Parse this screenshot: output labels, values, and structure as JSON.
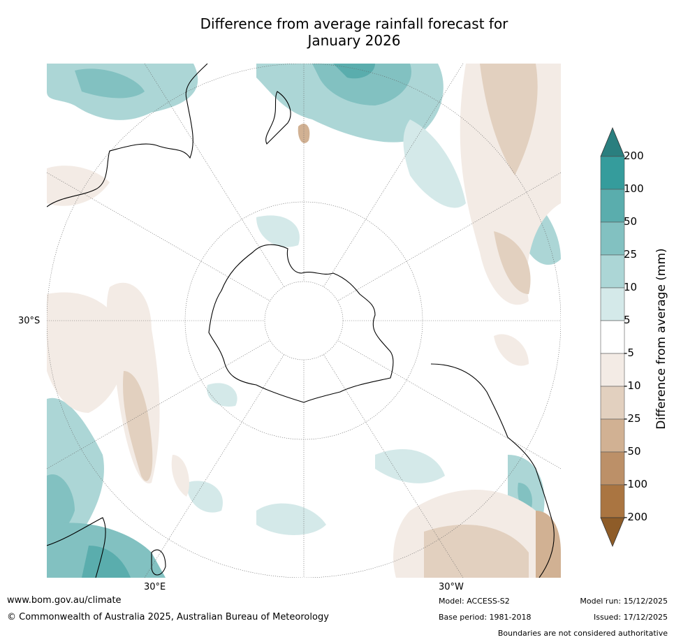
{
  "title": {
    "line1": "Difference from average rainfall forecast for",
    "line2": "January 2026"
  },
  "map": {
    "projection": "south-polar stereographic",
    "lat_label": "30°S",
    "lon_labels": [
      "30°E",
      "30°W"
    ]
  },
  "colorbar": {
    "title": "Difference from average (mm)",
    "ticks": [
      "200",
      "100",
      "50",
      "25",
      "10",
      "5",
      "-5",
      "-10",
      "-25",
      "-50",
      "-100",
      "-200"
    ],
    "colors": [
      "#2a7f7f",
      "#359c9c",
      "#5aadad",
      "#82c1c1",
      "#acd6d6",
      "#d4e9e9",
      "#ffffff",
      "#f3ebe5",
      "#e2d0bf",
      "#d1b193",
      "#bc9068",
      "#aa7541",
      "#8e5c28"
    ],
    "extend_max_color": "#2a7f7f",
    "extend_min_color": "#8e5c28"
  },
  "footer": {
    "website": "www.bom.gov.au/climate",
    "copyright": "© Commonwealth of Australia 2025, Australian Bureau of Meteorology",
    "model": "Model: ACCESS-S2",
    "base_period": "Base period: 1981-2018",
    "model_run": "Model run: 15/12/2025",
    "issued": "Issued: 17/12/2025",
    "disclaimer": "Boundaries are not considered authoritative"
  }
}
